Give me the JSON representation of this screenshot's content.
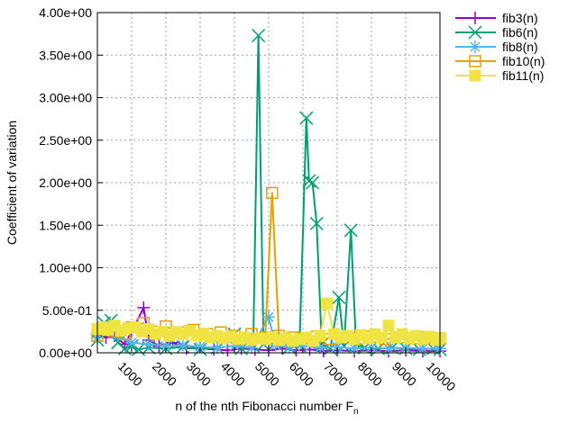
{
  "chart_data": {
    "type": "line",
    "xlabel": "n of the nth Fibonacci number F",
    "xlabel_subscript": "n",
    "ylabel": "Coefficient of variation",
    "xlim": [
      0,
      10000
    ],
    "ylim": [
      0,
      4.0
    ],
    "x_ticks": [
      1000,
      2000,
      3000,
      4000,
      5000,
      6000,
      7000,
      8000,
      9000,
      10000
    ],
    "x_tick_labels": [
      "1000",
      "2000",
      "3000",
      "4000",
      "5000",
      "6000",
      "7000",
      "8000",
      "9000",
      "10000"
    ],
    "y_ticks": [
      0,
      0.5,
      1.0,
      1.5,
      2.0,
      2.5,
      3.0,
      3.5,
      4.0
    ],
    "y_tick_labels": [
      "0.00e+00",
      "5.00e-01",
      "1.00e+00",
      "1.50e+00",
      "2.00e+00",
      "2.50e+00",
      "3.00e+00",
      "3.50e+00",
      "4.00e+00"
    ],
    "grid": true,
    "legend_position": "outside top-right",
    "series": [
      {
        "name": "fib3(n)",
        "color": "#9400d3",
        "marker": "plus",
        "points": [
          [
            0,
            0.22
          ],
          [
            250,
            0.18
          ],
          [
            500,
            0.2
          ],
          [
            800,
            0.1
          ],
          [
            1000,
            0.25
          ],
          [
            1350,
            0.53
          ],
          [
            1500,
            0.15
          ],
          [
            1800,
            0.08
          ],
          [
            2200,
            0.12
          ],
          [
            2600,
            0.05
          ],
          [
            3000,
            0.07
          ],
          [
            3400,
            0.04
          ],
          [
            3800,
            0.03
          ],
          [
            4200,
            0.05
          ],
          [
            4600,
            0.04
          ],
          [
            5000,
            0.03
          ],
          [
            5400,
            0.05
          ],
          [
            5800,
            0.03
          ],
          [
            6200,
            0.04
          ],
          [
            6600,
            0.02
          ],
          [
            7000,
            0.03
          ],
          [
            7500,
            0.02
          ],
          [
            8000,
            0.03
          ],
          [
            8500,
            0.02
          ],
          [
            9000,
            0.03
          ],
          [
            9500,
            0.02
          ],
          [
            10000,
            0.02
          ]
        ]
      },
      {
        "name": "fib6(n)",
        "color": "#009e73",
        "marker": "cross",
        "points": [
          [
            0,
            0.15
          ],
          [
            200,
            0.35
          ],
          [
            400,
            0.38
          ],
          [
            600,
            0.12
          ],
          [
            800,
            0.05
          ],
          [
            1000,
            0.08
          ],
          [
            1200,
            0.04
          ],
          [
            1500,
            0.06
          ],
          [
            2000,
            0.05
          ],
          [
            2500,
            0.07
          ],
          [
            3000,
            0.04
          ],
          [
            3500,
            0.06
          ],
          [
            4000,
            0.22
          ],
          [
            4200,
            0.05
          ],
          [
            4550,
            0.08
          ],
          [
            4700,
            3.73
          ],
          [
            4850,
            0.1
          ],
          [
            5200,
            0.12
          ],
          [
            5600,
            0.06
          ],
          [
            5900,
            0.08
          ],
          [
            6100,
            2.76
          ],
          [
            6180,
            2.02
          ],
          [
            6280,
            2.0
          ],
          [
            6400,
            1.52
          ],
          [
            6550,
            0.1
          ],
          [
            6800,
            0.05
          ],
          [
            7050,
            0.65
          ],
          [
            7200,
            0.08
          ],
          [
            7400,
            1.44
          ],
          [
            7550,
            0.1
          ],
          [
            7800,
            0.06
          ],
          [
            8200,
            0.05
          ],
          [
            8600,
            0.06
          ],
          [
            9000,
            0.05
          ],
          [
            9400,
            0.04
          ],
          [
            9800,
            0.05
          ],
          [
            10000,
            0.04
          ]
        ]
      },
      {
        "name": "fib8(n)",
        "color": "#56b4e9",
        "marker": "star",
        "points": [
          [
            0,
            0.18
          ],
          [
            300,
            0.3
          ],
          [
            600,
            0.2
          ],
          [
            1000,
            0.12
          ],
          [
            1500,
            0.1
          ],
          [
            2000,
            0.08
          ],
          [
            2500,
            0.09
          ],
          [
            3000,
            0.07
          ],
          [
            3500,
            0.06
          ],
          [
            4000,
            0.08
          ],
          [
            4500,
            0.06
          ],
          [
            5000,
            0.42
          ],
          [
            5200,
            0.09
          ],
          [
            5600,
            0.07
          ],
          [
            6000,
            0.08
          ],
          [
            6500,
            0.06
          ],
          [
            7000,
            0.07
          ],
          [
            7500,
            0.05
          ],
          [
            8000,
            0.06
          ],
          [
            8500,
            0.05
          ],
          [
            9000,
            0.06
          ],
          [
            9500,
            0.05
          ],
          [
            10000,
            0.05
          ]
        ]
      },
      {
        "name": "fib10(n)",
        "color": "#e69f00",
        "marker": "square-open",
        "points": [
          [
            0,
            0.2
          ],
          [
            250,
            0.28
          ],
          [
            500,
            0.25
          ],
          [
            800,
            0.22
          ],
          [
            1000,
            0.3
          ],
          [
            1350,
            0.35
          ],
          [
            1600,
            0.25
          ],
          [
            2000,
            0.31
          ],
          [
            2400,
            0.24
          ],
          [
            2800,
            0.27
          ],
          [
            3200,
            0.22
          ],
          [
            3600,
            0.24
          ],
          [
            4000,
            0.2
          ],
          [
            4500,
            0.22
          ],
          [
            4900,
            0.18
          ],
          [
            5100,
            1.88
          ],
          [
            5300,
            0.2
          ],
          [
            5700,
            0.18
          ],
          [
            6000,
            0.17
          ],
          [
            6400,
            0.19
          ],
          [
            6800,
            0.16
          ],
          [
            7200,
            0.18
          ],
          [
            7600,
            0.17
          ],
          [
            8000,
            0.19
          ],
          [
            8400,
            0.16
          ],
          [
            8800,
            0.18
          ],
          [
            9200,
            0.17
          ],
          [
            9600,
            0.18
          ],
          [
            10000,
            0.17
          ]
        ]
      },
      {
        "name": "fib11(n)",
        "color": "#f0e442",
        "marker": "square-filled",
        "points": [
          [
            0,
            0.28
          ],
          [
            150,
            0.3
          ],
          [
            300,
            0.27
          ],
          [
            500,
            0.32
          ],
          [
            700,
            0.26
          ],
          [
            900,
            0.29
          ],
          [
            1100,
            0.3
          ],
          [
            1300,
            0.25
          ],
          [
            1500,
            0.28
          ],
          [
            1700,
            0.22
          ],
          [
            1900,
            0.25
          ],
          [
            2100,
            0.2
          ],
          [
            2300,
            0.24
          ],
          [
            2500,
            0.22
          ],
          [
            2700,
            0.26
          ],
          [
            2900,
            0.2
          ],
          [
            3100,
            0.22
          ],
          [
            3300,
            0.18
          ],
          [
            3500,
            0.2
          ],
          [
            3700,
            0.17
          ],
          [
            3900,
            0.19
          ],
          [
            4100,
            0.16
          ],
          [
            4300,
            0.18
          ],
          [
            4500,
            0.15
          ],
          [
            4700,
            0.17
          ],
          [
            4900,
            0.16
          ],
          [
            5100,
            0.18
          ],
          [
            5300,
            0.15
          ],
          [
            5500,
            0.17
          ],
          [
            5700,
            0.14
          ],
          [
            5900,
            0.16
          ],
          [
            6100,
            0.18
          ],
          [
            6300,
            0.14
          ],
          [
            6500,
            0.2
          ],
          [
            6700,
            0.58
          ],
          [
            6900,
            0.22
          ],
          [
            7100,
            0.18
          ],
          [
            7300,
            0.2
          ],
          [
            7500,
            0.16
          ],
          [
            7700,
            0.21
          ],
          [
            7900,
            0.17
          ],
          [
            8100,
            0.22
          ],
          [
            8300,
            0.18
          ],
          [
            8500,
            0.32
          ],
          [
            8700,
            0.18
          ],
          [
            8900,
            0.22
          ],
          [
            9100,
            0.17
          ],
          [
            9300,
            0.2
          ],
          [
            9500,
            0.16
          ],
          [
            9700,
            0.19
          ],
          [
            9900,
            0.15
          ],
          [
            10000,
            0.17
          ]
        ]
      }
    ]
  }
}
